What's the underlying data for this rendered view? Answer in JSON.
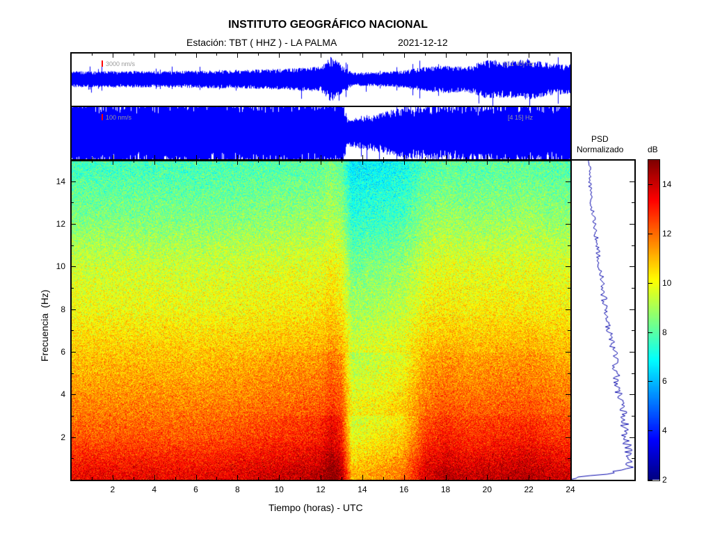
{
  "header": {
    "title": "INSTITUTO GEOGRÁFICO NACIONAL",
    "station": "Estación:  TBT ( HHZ ) - LA PALMA",
    "date": "2021-12-12"
  },
  "chart_data": [
    {
      "type": "line",
      "panel": "waveform-broadband",
      "scale_label": "3000 nm/s",
      "band_label": "[0.1 40] Hz",
      "color": "#0000ff",
      "scale_color": "#ff0000",
      "x_hours": [
        0,
        2,
        4,
        6,
        8,
        10,
        11,
        12,
        12.5,
        13,
        13.5,
        14,
        15,
        16,
        17,
        18,
        19,
        20,
        21,
        22,
        23,
        24
      ],
      "relative_amplitude": [
        0.35,
        0.36,
        0.36,
        0.38,
        0.4,
        0.45,
        0.5,
        0.55,
        1.0,
        0.6,
        0.3,
        0.3,
        0.32,
        0.38,
        0.55,
        0.6,
        0.55,
        0.85,
        0.8,
        0.9,
        0.7,
        0.65
      ]
    },
    {
      "type": "line",
      "panel": "waveform-filtered",
      "scale_label": "100 nm/s",
      "band_label": "[4 15] Hz",
      "color": "#0000ff",
      "note_saturated": true,
      "x_hours": [
        0,
        13,
        13.3,
        14,
        15,
        16,
        24
      ],
      "relative_amplitude": [
        1.5,
        1.5,
        0.6,
        0.7,
        0.9,
        1.2,
        1.5
      ]
    },
    {
      "type": "heatmap",
      "panel": "spectrogram",
      "xlabel": "Tiempo (horas) - UTC",
      "ylabel": "Frecuencia  (Hz)",
      "xlim": [
        0,
        24
      ],
      "ylim": [
        0,
        15
      ],
      "xticks": [
        "2",
        "4",
        "6",
        "8",
        "10",
        "12",
        "14",
        "16",
        "18",
        "20",
        "22",
        "24"
      ],
      "yticks": [
        "2",
        "4",
        "6",
        "8",
        "10",
        "12",
        "14"
      ],
      "colormap": "jet",
      "colorbar": {
        "label": "dB",
        "range": [
          2,
          15
        ],
        "ticks": [
          "2",
          "4",
          "6",
          "8",
          "10",
          "12",
          "14"
        ]
      },
      "freq_hz": [
        0.3,
        1,
        2,
        4,
        6,
        8,
        10,
        12,
        14.5
      ],
      "mean_db_by_freq": [
        13.5,
        13,
        12.3,
        11.5,
        10.8,
        10,
        9.5,
        8.6,
        7.8
      ],
      "x_hours": [
        0,
        2,
        4,
        6,
        8,
        10,
        11,
        12,
        12.5,
        13,
        13.5,
        14,
        15,
        16,
        17,
        18,
        19,
        20,
        21,
        22,
        23,
        24
      ],
      "time_anomaly_db": [
        0,
        0,
        0,
        0,
        0.2,
        0.5,
        0.6,
        0.8,
        1.5,
        0.8,
        -2.5,
        -2.3,
        -2,
        -1.5,
        0.3,
        0.8,
        0.5,
        0.6,
        0.7,
        0.8,
        0.5,
        0.4
      ]
    },
    {
      "type": "line",
      "panel": "psd",
      "title": "PSD",
      "subtitle": "Normalizado",
      "color": "#0000aa",
      "freq_hz": [
        0.05,
        0.3,
        0.6,
        1,
        1.5,
        2,
        3,
        4,
        5,
        6,
        7,
        8,
        9,
        10,
        11,
        12,
        13,
        14,
        15
      ],
      "normalized_psd": [
        0.0,
        0.6,
        0.95,
        0.92,
        0.9,
        0.87,
        0.83,
        0.75,
        0.72,
        0.68,
        0.6,
        0.55,
        0.5,
        0.46,
        0.42,
        0.37,
        0.33,
        0.3,
        0.3
      ]
    }
  ]
}
